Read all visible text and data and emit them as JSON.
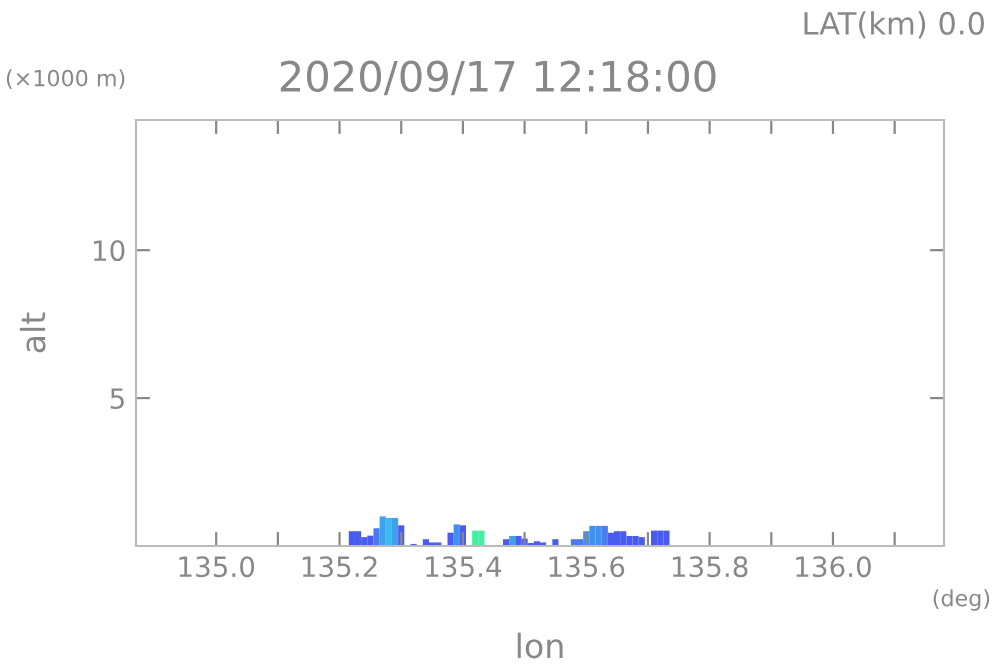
{
  "chart_data": {
    "type": "bar",
    "title": "2020/09/17 12:18:00",
    "xlabel": "lon",
    "ylabel": "alt",
    "annotations": [
      "LAT(km) 0.0",
      "(×1000 m)",
      "(deg)"
    ],
    "x": [
      135.22,
      135.23,
      135.24,
      135.25,
      135.26,
      135.27,
      135.28,
      135.29,
      135.3,
      135.31,
      135.32,
      135.33,
      135.34,
      135.35,
      135.36,
      135.37,
      135.38,
      135.39,
      135.4,
      135.41,
      135.42,
      135.43,
      135.44,
      135.45,
      135.46,
      135.47,
      135.48,
      135.49,
      135.5,
      135.51,
      135.52,
      135.53,
      135.54,
      135.55,
      135.56,
      135.57,
      135.58,
      135.59,
      135.6,
      135.61,
      135.62,
      135.63,
      135.64,
      135.65,
      135.66,
      135.67,
      135.68,
      135.69,
      135.7,
      135.71,
      135.72,
      135.73
    ],
    "values": [
      0.5,
      0.5,
      0.3,
      0.35,
      0.6,
      1.0,
      0.95,
      0.95,
      0.7,
      null,
      0.07,
      null,
      0.23,
      0.12,
      0.12,
      null,
      0.45,
      0.73,
      0.7,
      null,
      0.52,
      0.52,
      null,
      null,
      null,
      0.23,
      0.34,
      0.34,
      0.25,
      0.1,
      0.16,
      0.12,
      null,
      0.23,
      null,
      null,
      0.23,
      0.23,
      0.5,
      0.68,
      0.68,
      0.68,
      0.45,
      0.5,
      0.5,
      0.34,
      0.34,
      0.3,
      null,
      0.52,
      0.52,
      0.52
    ],
    "colors": [
      "#4a5cf0",
      "#4a5cf0",
      "#4a5cf0",
      "#4a5cf0",
      "#4a7cf0",
      "#3fa0f0",
      "#3fb8f0",
      "#3fa0f0",
      "#4a5cf0",
      "#4a5cf0",
      "#4a5cf0",
      "#4a5cf0",
      "#4a5cf0",
      "#4a5cf0",
      "#4a5cf0",
      "#4a5cf0",
      "#4a5cf0",
      "#3f90f0",
      "#4a5cf0",
      "#4a5cf0",
      "#40f0a0",
      "#40f0a0",
      "#4a5cf0",
      "#4a5cf0",
      "#4a5cf0",
      "#4a5cf0",
      "#40a0e0",
      "#4a5cf0",
      "#4a5cf0",
      "#4a5cf0",
      "#4a5cf0",
      "#4a5cf0",
      "#4a5cf0",
      "#4a5cf0",
      "#4a5cf0",
      "#4a5cf0",
      "#4a7cf0",
      "#4a7cf0",
      "#3f90f0",
      "#3f90f0",
      "#3f90f0",
      "#4a7cf0",
      "#4a5cf0",
      "#4a5cf0",
      "#4a5cf0",
      "#4a5cf0",
      "#4a5cf0",
      "#4a5cf0",
      "#4a5cf0",
      "#4a5cf0",
      "#4a5cf0",
      "#4a5cf0"
    ],
    "xlim": [
      134.87,
      136.18
    ],
    "xticks": [
      {
        "value": 135.0,
        "label": "135.0"
      },
      {
        "value": 135.1,
        "label": null
      },
      135.2,
      {
        "value": 135.3,
        "label": null
      },
      135.4,
      {
        "value": 135.5,
        "label": null
      },
      135.6,
      {
        "value": 135.7,
        "label": null
      },
      135.8,
      {
        "value": 135.9,
        "label": null
      },
      {
        "value": 136.0,
        "label": "136.0"
      },
      {
        "value": 136.1,
        "label": null
      }
    ],
    "ylim": [
      0,
      14.4
    ],
    "yticks": [
      5,
      10
    ],
    "grid": false,
    "legend": false
  }
}
